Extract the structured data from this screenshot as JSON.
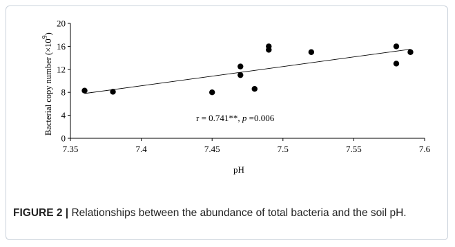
{
  "chart_data": {
    "type": "scatter",
    "xlabel": "pH",
    "ylabel_main": "Bacterial copy number (×10",
    "ylabel_exp": "9",
    "ylabel_close": ")",
    "xlim": [
      7.35,
      7.6
    ],
    "ylim": [
      0,
      20
    ],
    "x_ticks": [
      "7.35",
      "7.4",
      "7.45",
      "7.5",
      "7.55",
      "7.6"
    ],
    "x_tick_values": [
      7.35,
      7.4,
      7.45,
      7.5,
      7.55,
      7.6
    ],
    "y_ticks": [
      "0",
      "4",
      "8",
      "12",
      "16",
      "20"
    ],
    "y_tick_values": [
      0,
      4,
      8,
      12,
      16,
      20
    ],
    "points": [
      {
        "x": 7.36,
        "y": 8.3
      },
      {
        "x": 7.38,
        "y": 8.1
      },
      {
        "x": 7.45,
        "y": 8.0
      },
      {
        "x": 7.47,
        "y": 12.5
      },
      {
        "x": 7.47,
        "y": 11.0
      },
      {
        "x": 7.48,
        "y": 8.6
      },
      {
        "x": 7.49,
        "y": 16.0
      },
      {
        "x": 7.49,
        "y": 15.4
      },
      {
        "x": 7.52,
        "y": 15.0
      },
      {
        "x": 7.58,
        "y": 16.0
      },
      {
        "x": 7.58,
        "y": 13.0
      },
      {
        "x": 7.59,
        "y": 15.0
      }
    ],
    "trendline": {
      "x": [
        7.36,
        7.59
      ],
      "y": [
        7.8,
        15.5
      ]
    },
    "annotation_prefix": "r = 0.741**, ",
    "annotation_p": "p",
    "annotation_suffix": " =0.006",
    "grid": false,
    "legend": "none"
  },
  "caption": {
    "label": "FIGURE 2 |",
    "text": " Relationships between the abundance of total bacteria and the soil pH."
  }
}
